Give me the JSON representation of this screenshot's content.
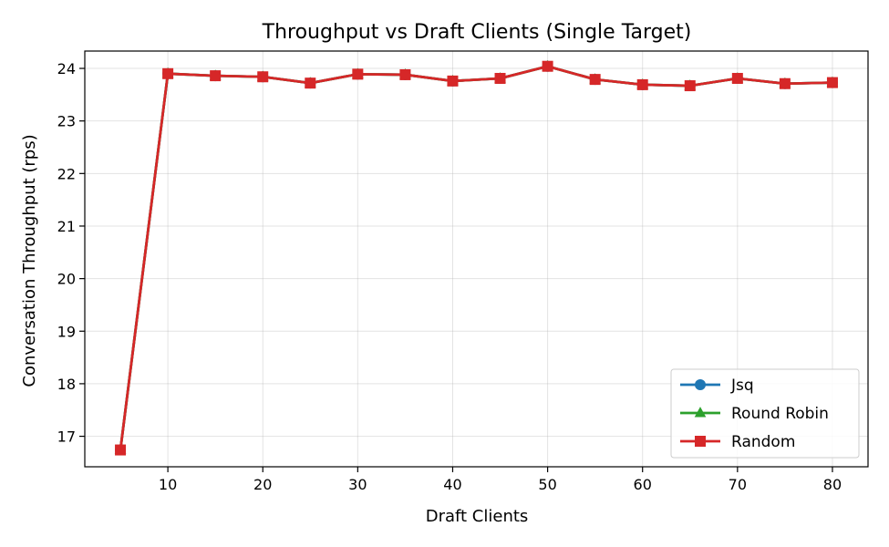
{
  "chart_data": {
    "type": "line",
    "title": "Throughput vs Draft Clients (Single Target)",
    "xlabel": "Draft Clients",
    "ylabel": "Conversation Throughput (rps)",
    "x": [
      5,
      10,
      15,
      20,
      25,
      30,
      35,
      40,
      45,
      50,
      55,
      60,
      65,
      70,
      75,
      80
    ],
    "xlim": [
      1.25,
      83.75
    ],
    "ylim": [
      16.42,
      24.33
    ],
    "xticks": [
      10,
      20,
      30,
      40,
      50,
      60,
      70,
      80
    ],
    "yticks": [
      17,
      18,
      19,
      20,
      21,
      22,
      23,
      24
    ],
    "grid": true,
    "legend_position": "lower-right",
    "series": [
      {
        "name": "Jsq",
        "color": "#1f77b4",
        "marker": "circle",
        "values": [
          16.74,
          23.9,
          23.86,
          23.84,
          23.72,
          23.89,
          23.88,
          23.76,
          23.81,
          24.04,
          23.79,
          23.69,
          23.67,
          23.81,
          23.71,
          23.73
        ]
      },
      {
        "name": "Round Robin",
        "color": "#2ca02c",
        "marker": "triangle",
        "values": [
          16.74,
          23.9,
          23.86,
          23.84,
          23.72,
          23.89,
          23.88,
          23.76,
          23.81,
          24.04,
          23.79,
          23.69,
          23.67,
          23.81,
          23.71,
          23.73
        ]
      },
      {
        "name": "Random",
        "color": "#d62728",
        "marker": "square",
        "values": [
          16.74,
          23.9,
          23.86,
          23.84,
          23.72,
          23.89,
          23.88,
          23.76,
          23.81,
          24.04,
          23.79,
          23.69,
          23.67,
          23.81,
          23.71,
          23.73
        ]
      }
    ]
  }
}
